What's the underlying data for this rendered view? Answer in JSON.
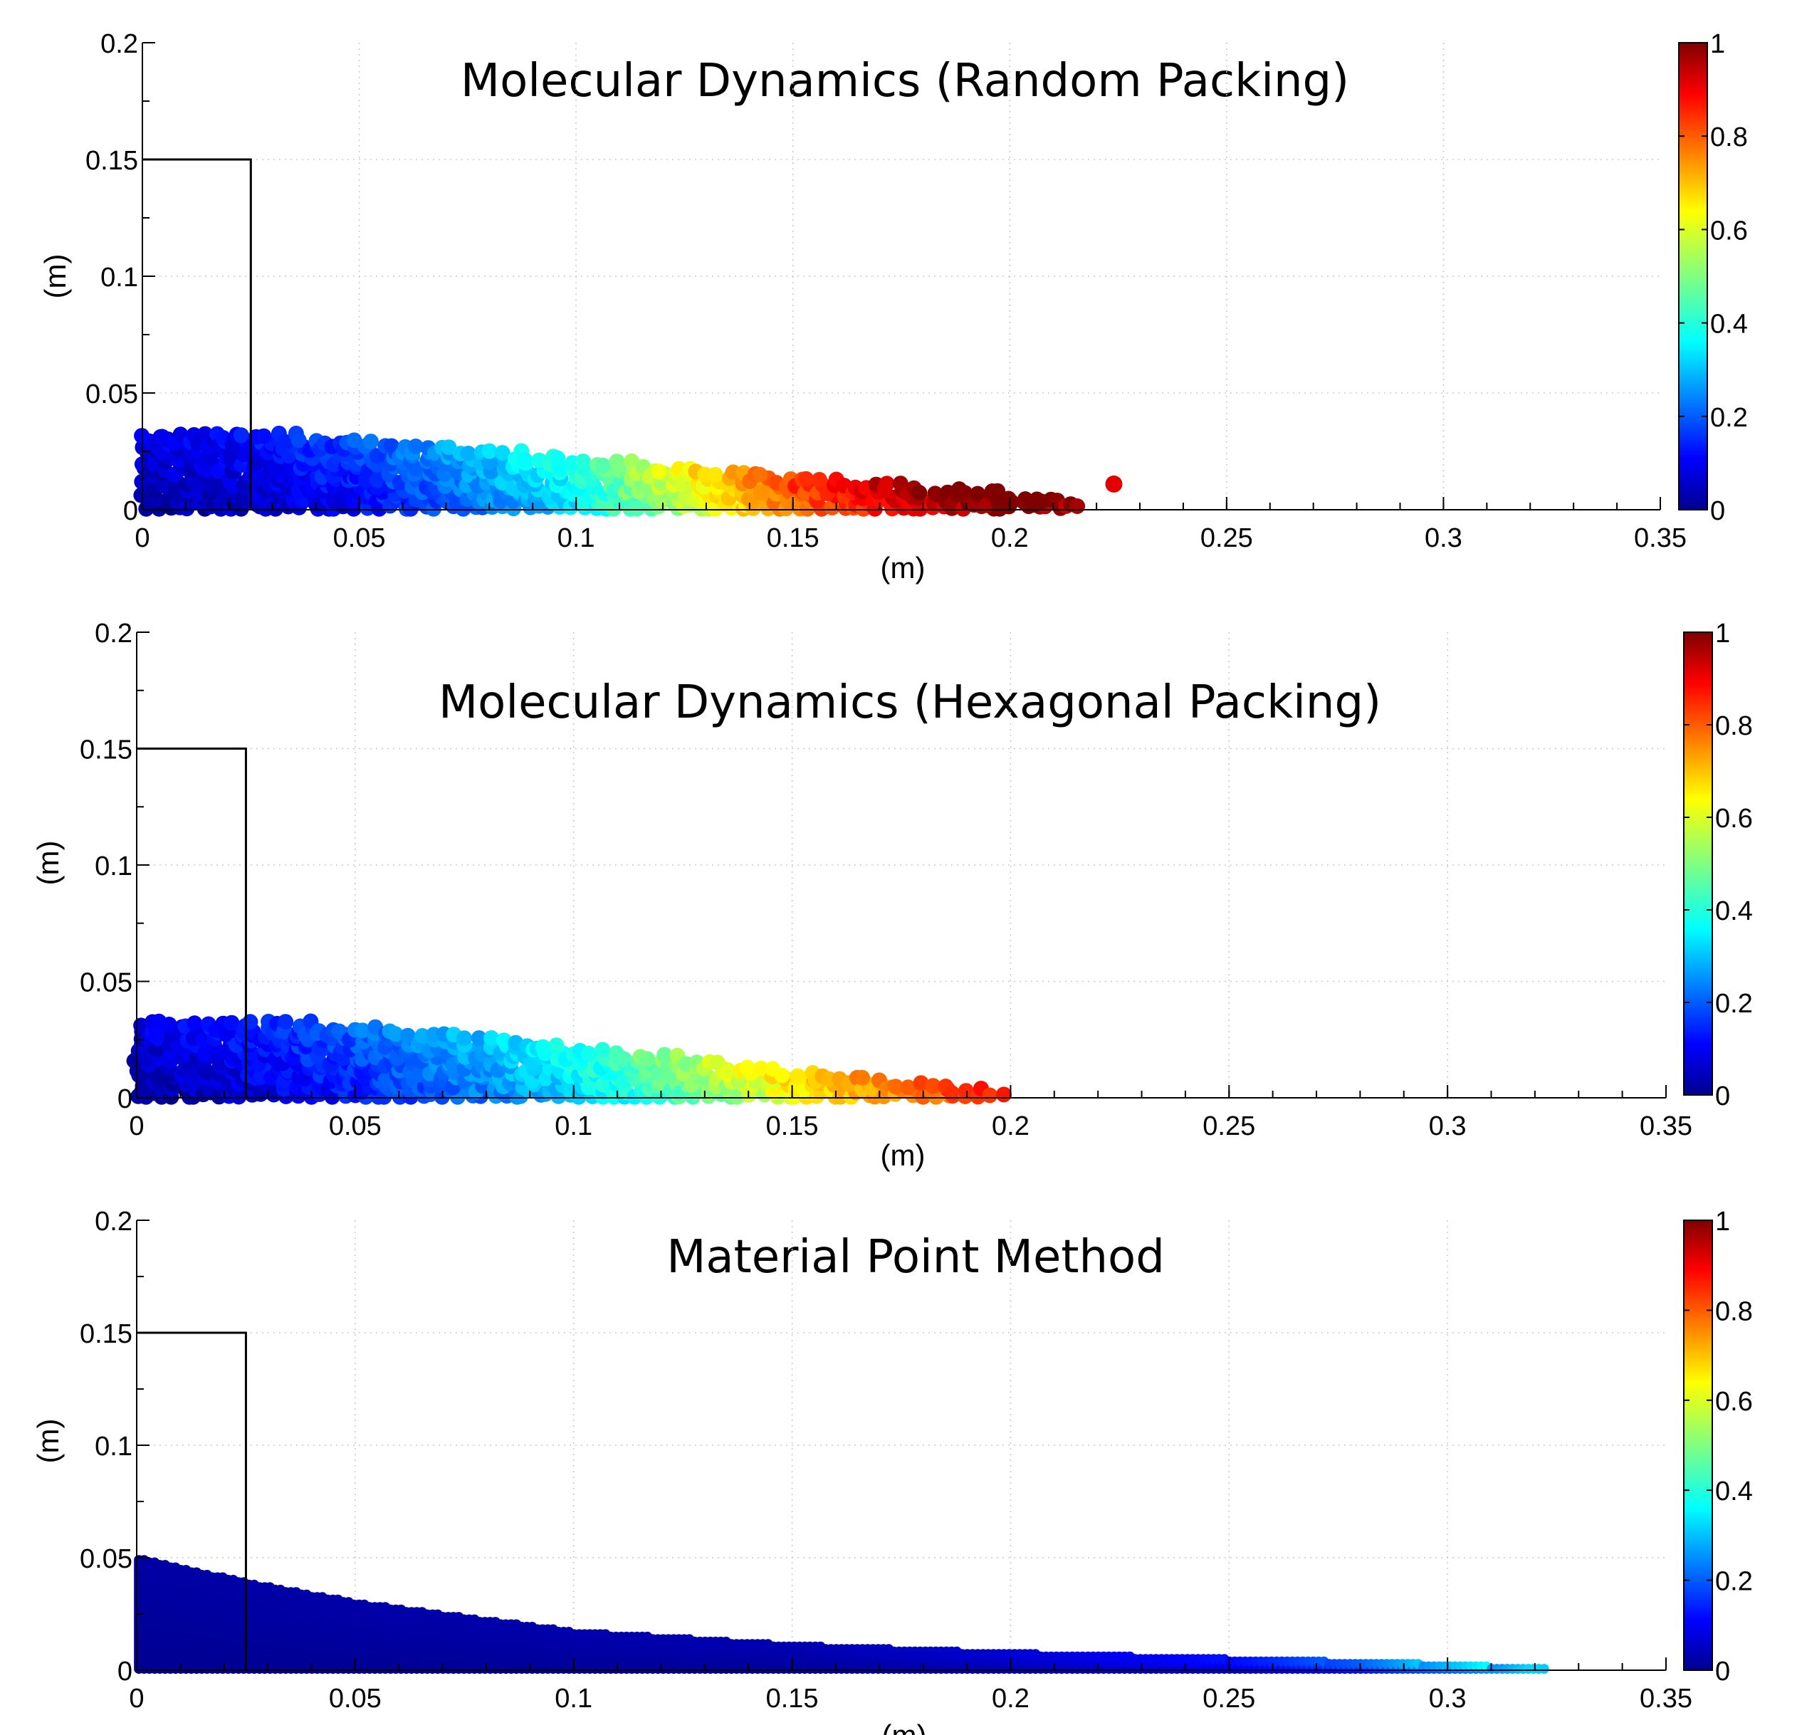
{
  "chart_data": [
    {
      "type": "scatter",
      "title": "Molecular Dynamics (Random Packing)",
      "xlabel": "(m)",
      "ylabel": "(m)",
      "xlim": [
        0,
        0.35
      ],
      "ylim": [
        0,
        0.2
      ],
      "xticks": [
        "0",
        "0.05",
        "0.1",
        "0.15",
        "0.2",
        "0.25",
        "0.3",
        "0.35"
      ],
      "yticks": [
        "0",
        "0.05",
        "0.1",
        "0.15",
        "0.2"
      ],
      "grid": true,
      "colormap": "jet",
      "colorbar_range": [
        0,
        1
      ],
      "colorbar_ticks": [
        "0",
        "0.2",
        "0.4",
        "0.6",
        "0.8",
        "1"
      ],
      "initial_column": {
        "x": [
          0,
          0.025
        ],
        "y": [
          0,
          0.15
        ]
      },
      "surface_profile": {
        "x": [
          0,
          0.02,
          0.05,
          0.08,
          0.1,
          0.12,
          0.15,
          0.18,
          0.2,
          0.21,
          0.22
        ],
        "y": [
          0.034,
          0.034,
          0.03,
          0.026,
          0.022,
          0.019,
          0.014,
          0.01,
          0.008,
          0.005,
          0.0
        ]
      },
      "color_by_x": {
        "x": [
          0.0,
          0.025,
          0.05,
          0.075,
          0.1,
          0.125,
          0.15,
          0.175,
          0.2,
          0.22
        ],
        "value": [
          0.02,
          0.06,
          0.12,
          0.22,
          0.34,
          0.55,
          0.75,
          0.88,
          0.98,
          0.92
        ]
      },
      "outlier_points": [
        {
          "x": 0.224,
          "y": 0.011,
          "value": 0.9
        }
      ]
    },
    {
      "type": "scatter",
      "title": "Molecular Dynamics (Hexagonal Packing)",
      "xlabel": "(m)",
      "ylabel": "(m)",
      "xlim": [
        0,
        0.35
      ],
      "ylim": [
        0,
        0.2
      ],
      "xticks": [
        "0",
        "0.05",
        "0.1",
        "0.15",
        "0.2",
        "0.25",
        "0.3",
        "0.35"
      ],
      "yticks": [
        "0",
        "0.05",
        "0.1",
        "0.15",
        "0.2"
      ],
      "grid": true,
      "colormap": "jet",
      "colorbar_range": [
        0,
        1
      ],
      "colorbar_ticks": [
        "0",
        "0.2",
        "0.4",
        "0.6",
        "0.8",
        "1"
      ],
      "initial_column": {
        "x": [
          0,
          0.025
        ],
        "y": [
          0,
          0.15
        ]
      },
      "surface_profile": {
        "x": [
          0,
          0.02,
          0.05,
          0.08,
          0.1,
          0.12,
          0.15,
          0.17,
          0.19,
          0.2
        ],
        "y": [
          0.034,
          0.034,
          0.031,
          0.026,
          0.022,
          0.018,
          0.012,
          0.008,
          0.005,
          0.0
        ]
      },
      "color_by_x": {
        "x": [
          0.0,
          0.025,
          0.05,
          0.075,
          0.1,
          0.125,
          0.15,
          0.175,
          0.2
        ],
        "value": [
          0.02,
          0.08,
          0.14,
          0.22,
          0.32,
          0.45,
          0.6,
          0.72,
          0.85
        ]
      },
      "outlier_points": []
    },
    {
      "type": "scatter",
      "title": "Material Point Method",
      "xlabel": "(m)",
      "ylabel": "(m)",
      "xlim": [
        0,
        0.35
      ],
      "ylim": [
        0,
        0.2
      ],
      "xticks": [
        "0",
        "0.05",
        "0.1",
        "0.15",
        "0.2",
        "0.25",
        "0.3",
        "0.35"
      ],
      "yticks": [
        "0",
        "0.05",
        "0.1",
        "0.15",
        "0.2"
      ],
      "grid": true,
      "colormap": "jet",
      "colorbar_range": [
        0,
        1
      ],
      "colorbar_ticks": [
        "0",
        "0.2",
        "0.4",
        "0.6",
        "0.8",
        "1"
      ],
      "initial_column": {
        "x": [
          0,
          0.025
        ],
        "y": [
          0,
          0.15
        ]
      },
      "surface_profile": {
        "x": [
          0,
          0.025,
          0.05,
          0.1,
          0.15,
          0.2,
          0.25,
          0.3,
          0.33
        ],
        "y": [
          0.05,
          0.039,
          0.03,
          0.017,
          0.011,
          0.0075,
          0.005,
          0.0025,
          0.0
        ]
      },
      "color_by_x": {
        "x": [
          0.0,
          0.15,
          0.2,
          0.25,
          0.28,
          0.3,
          0.32,
          0.33
        ],
        "value": [
          0.03,
          0.04,
          0.07,
          0.12,
          0.2,
          0.3,
          0.35,
          0.3
        ]
      },
      "outlier_points": []
    }
  ]
}
